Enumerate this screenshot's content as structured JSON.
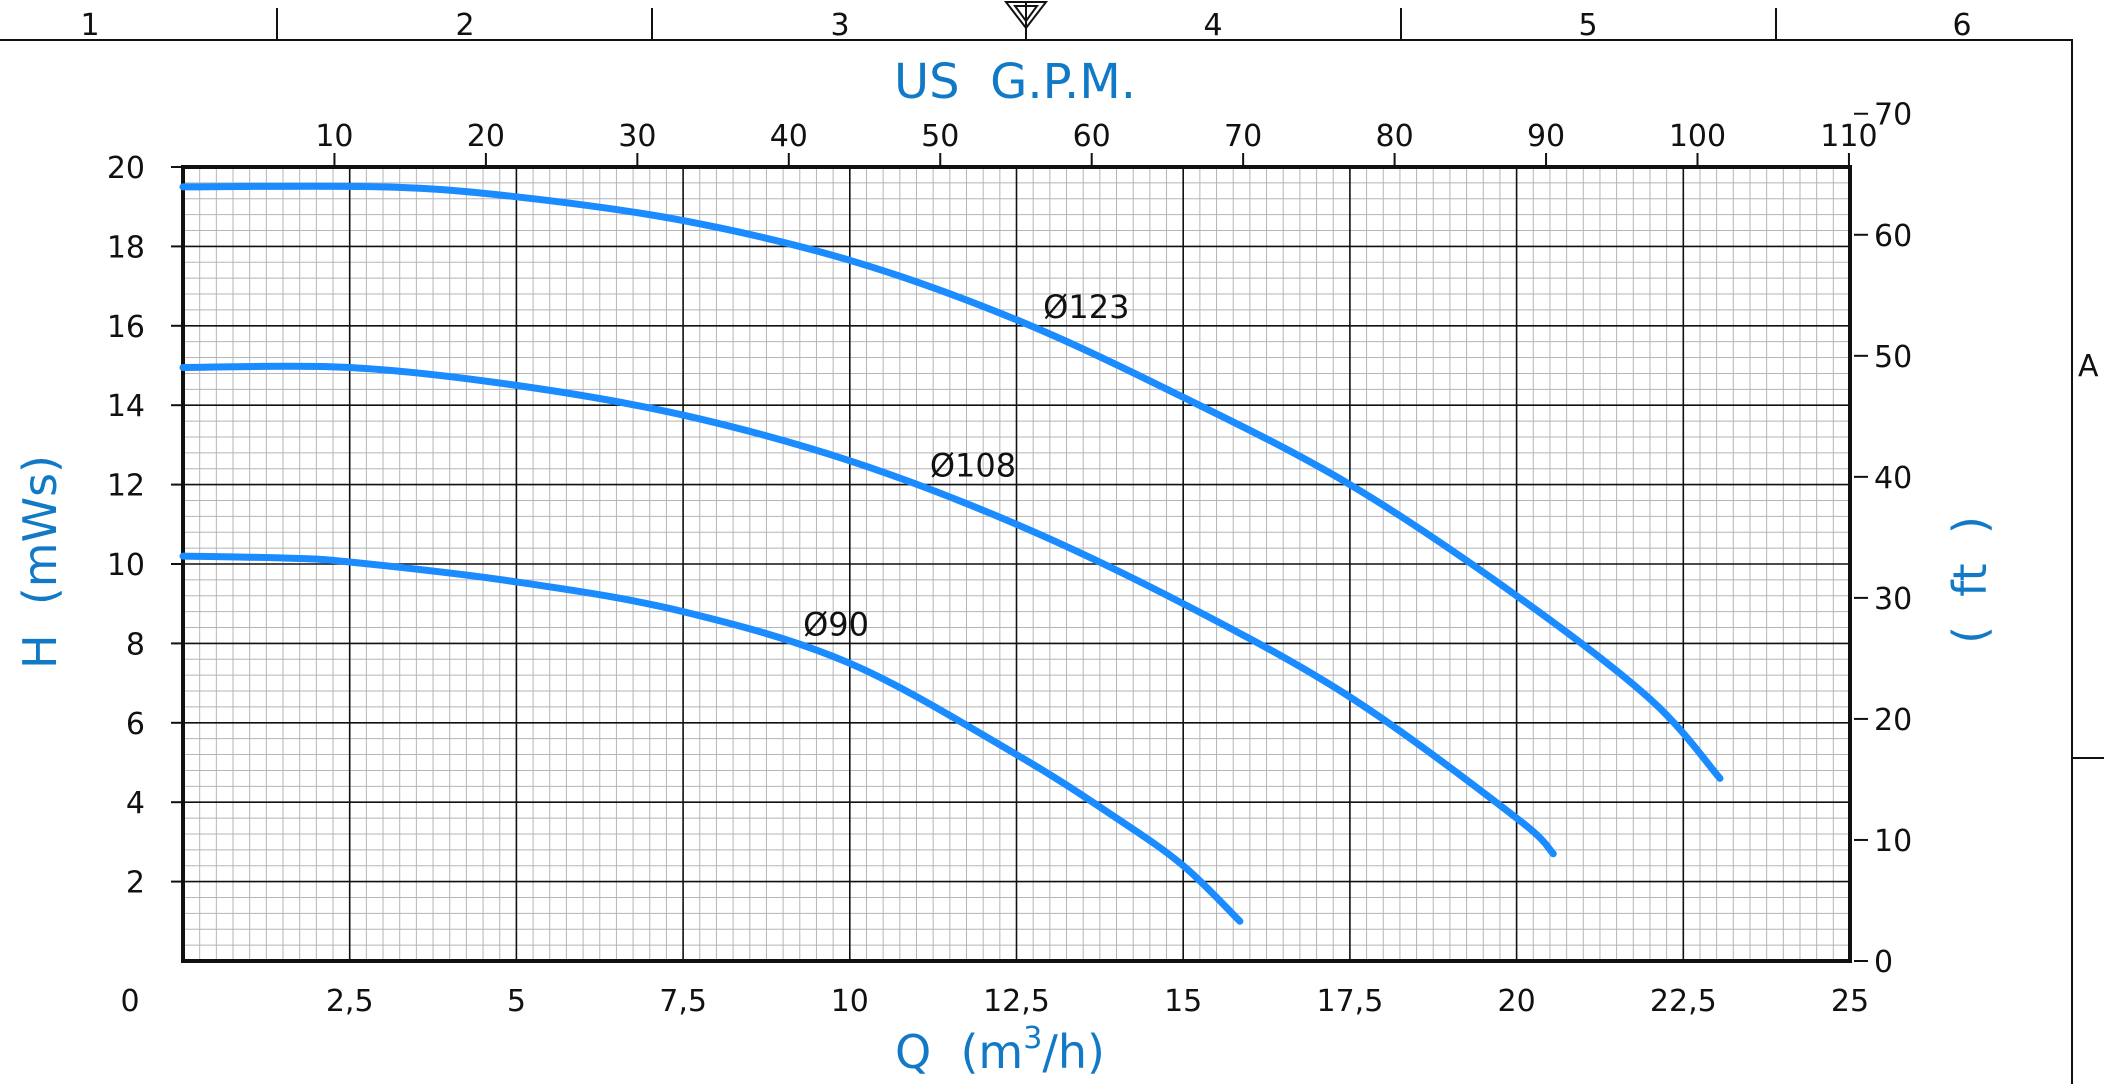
{
  "frame": {
    "zone_numbers": [
      "1",
      "2",
      "3",
      "4",
      "5",
      "6"
    ],
    "row_letter": "A",
    "marker": "datum-triangle-icon"
  },
  "chart_data": {
    "type": "line",
    "xlabel": {
      "pre": "Q  (m",
      "sup": "3",
      "post": "/h)"
    },
    "ylabel": "H  (mWs)",
    "x2label": "US  G.P.M.",
    "y2label": "(  ft  )",
    "xlim": [
      0,
      25
    ],
    "ylim": [
      0,
      20
    ],
    "x2lim": [
      0,
      110.07
    ],
    "y2lim": [
      0,
      65.6
    ],
    "x_ticks": [
      {
        "v": 0,
        "label": "0"
      },
      {
        "v": 2.5,
        "label": "2,5"
      },
      {
        "v": 5,
        "label": "5"
      },
      {
        "v": 7.5,
        "label": "7,5"
      },
      {
        "v": 10,
        "label": "10"
      },
      {
        "v": 12.5,
        "label": "12,5"
      },
      {
        "v": 15,
        "label": "15"
      },
      {
        "v": 17.5,
        "label": "17,5"
      },
      {
        "v": 20,
        "label": "20"
      },
      {
        "v": 22.5,
        "label": "22,5"
      },
      {
        "v": 25,
        "label": "25"
      }
    ],
    "y_ticks": [
      {
        "v": 2,
        "label": "2"
      },
      {
        "v": 4,
        "label": "4"
      },
      {
        "v": 6,
        "label": "6"
      },
      {
        "v": 8,
        "label": "8"
      },
      {
        "v": 10,
        "label": "10"
      },
      {
        "v": 12,
        "label": "12"
      },
      {
        "v": 14,
        "label": "14"
      },
      {
        "v": 16,
        "label": "16"
      },
      {
        "v": 18,
        "label": "18"
      },
      {
        "v": 20,
        "label": "20"
      }
    ],
    "x2_ticks": [
      {
        "v": 10,
        "label": "10"
      },
      {
        "v": 20,
        "label": "20"
      },
      {
        "v": 30,
        "label": "30"
      },
      {
        "v": 40,
        "label": "40"
      },
      {
        "v": 50,
        "label": "50"
      },
      {
        "v": 60,
        "label": "60"
      },
      {
        "v": 70,
        "label": "70"
      },
      {
        "v": 80,
        "label": "80"
      },
      {
        "v": 90,
        "label": "90"
      },
      {
        "v": 100,
        "label": "100"
      },
      {
        "v": 110,
        "label": "110"
      }
    ],
    "y2_ticks": [
      {
        "v": 0,
        "label": "0"
      },
      {
        "v": 10,
        "label": "10"
      },
      {
        "v": 20,
        "label": "20"
      },
      {
        "v": 30,
        "label": "30"
      },
      {
        "v": 40,
        "label": "40"
      },
      {
        "v": 50,
        "label": "50"
      },
      {
        "v": 60,
        "label": "60"
      },
      {
        "v": 70,
        "label": "70"
      }
    ],
    "grid": {
      "major_x": 2.5,
      "minor_x": 0.25,
      "major_y": 2,
      "minor_y": 0.4
    },
    "series": [
      {
        "name": "Ø123",
        "color": "#1a8cff",
        "label_at": [
          12.9,
          16.2
        ],
        "points": [
          [
            0,
            19.5
          ],
          [
            3,
            19.5
          ],
          [
            5,
            19.25
          ],
          [
            7.5,
            18.65
          ],
          [
            10,
            17.65
          ],
          [
            12.5,
            16.15
          ],
          [
            15,
            14.2
          ],
          [
            17.5,
            12.0
          ],
          [
            20,
            9.2
          ],
          [
            22,
            6.6
          ],
          [
            23.05,
            4.6
          ]
        ]
      },
      {
        "name": "Ø108",
        "color": "#1a8cff",
        "label_at": [
          11.2,
          12.2
        ],
        "points": [
          [
            0,
            14.95
          ],
          [
            2.5,
            14.95
          ],
          [
            5,
            14.5
          ],
          [
            7.5,
            13.75
          ],
          [
            10,
            12.6
          ],
          [
            12.5,
            11.0
          ],
          [
            15,
            9.0
          ],
          [
            17.5,
            6.65
          ],
          [
            20,
            3.6
          ],
          [
            20.55,
            2.7
          ]
        ]
      },
      {
        "name": "Ø90",
        "color": "#1a8cff",
        "label_at": [
          9.3,
          8.2
        ],
        "points": [
          [
            0,
            10.2
          ],
          [
            1.5,
            10.15
          ],
          [
            2.5,
            10.05
          ],
          [
            5,
            9.55
          ],
          [
            7.5,
            8.8
          ],
          [
            10,
            7.5
          ],
          [
            12.5,
            5.2
          ],
          [
            14.0,
            3.6
          ],
          [
            15,
            2.4
          ],
          [
            15.85,
            1.0
          ]
        ]
      }
    ]
  }
}
